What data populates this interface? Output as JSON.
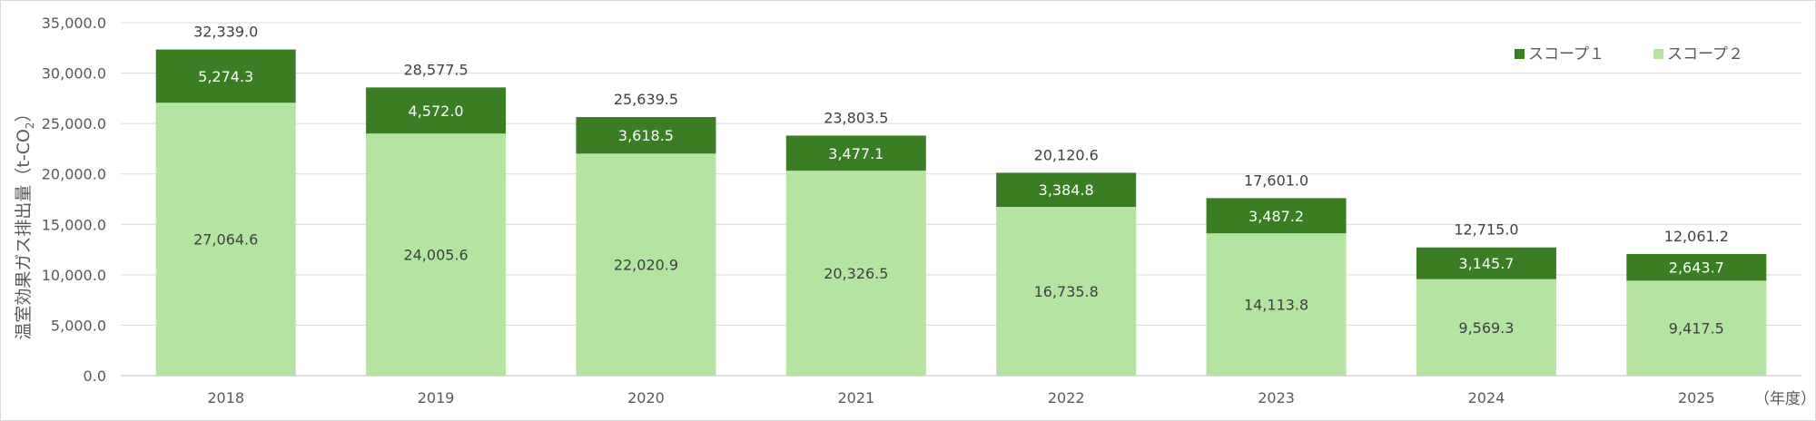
{
  "colors": {
    "scope1": "#3a7d22",
    "scope2": "#b4e3a2",
    "grid": "#d9d9d9",
    "axis": "#bfbfbf"
  },
  "chart_data": {
    "type": "bar",
    "stacked": true,
    "categories": [
      "2018",
      "2019",
      "2020",
      "2021",
      "2022",
      "2023",
      "2024",
      "2025"
    ],
    "series": [
      {
        "name": "スコープ２",
        "values": [
          27064.6,
          24005.6,
          22020.9,
          20326.5,
          16735.8,
          14113.8,
          9569.3,
          9417.5
        ]
      },
      {
        "name": "スコープ１",
        "values": [
          5274.3,
          4572.0,
          3618.5,
          3477.1,
          3384.8,
          3487.2,
          3145.7,
          2643.7
        ]
      }
    ],
    "series_labels": [
      [
        "27,064.6",
        "24,005.6",
        "22,020.9",
        "20,326.5",
        "16,735.8",
        "14,113.8",
        "9,569.3",
        "9,417.5"
      ],
      [
        "5,274.3",
        "4,572.0",
        "3,618.5",
        "3,477.1",
        "3,384.8",
        "3,487.2",
        "3,145.7",
        "2,643.7"
      ]
    ],
    "totals": [
      32339.0,
      28577.5,
      25639.5,
      23803.5,
      20120.6,
      17601.0,
      12715.0,
      12061.2
    ],
    "total_labels": [
      "32,339.0",
      "28,577.5",
      "25,639.5",
      "23,803.5",
      "20,120.6",
      "17,601.0",
      "12,715.0",
      "12,061.2"
    ],
    "ylim": [
      0,
      35000
    ],
    "yticks": [
      0,
      5000,
      10000,
      15000,
      20000,
      25000,
      30000,
      35000
    ],
    "ytick_labels": [
      "0.0",
      "5,000.0",
      "10,000.0",
      "15,000.0",
      "20,000.0",
      "25,000.0",
      "30,000.0",
      "35,000.0"
    ],
    "ylabel_main": "温室効果ガス排出量（t-CO",
    "ylabel_sub": "2",
    "ylabel_end": "）",
    "xunit": "（年度）",
    "legend": {
      "position": "top-right",
      "items": [
        {
          "label": "スコープ１",
          "series": 1
        },
        {
          "label": "スコープ２",
          "series": 0
        }
      ]
    },
    "grid": true
  }
}
